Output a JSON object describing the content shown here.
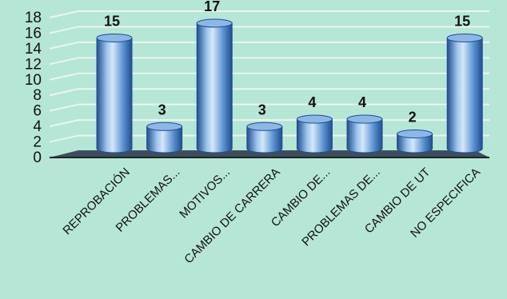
{
  "chart_data": {
    "type": "bar",
    "categories": [
      "REPROBACIÓN",
      "PROBLEMAS...",
      "MOTIVOS...",
      "CAMBIO DE CARRERA",
      "CAMBIO DE...",
      "PROBLEMAS DE...",
      "CAMBIO DE UT",
      "NO ESPECIFICA"
    ],
    "values": [
      15,
      3,
      17,
      3,
      4,
      4,
      2,
      15
    ],
    "data_labels": [
      "15",
      "3",
      "17",
      "3",
      "4",
      "4",
      "2",
      "15"
    ],
    "title": "",
    "xlabel": "",
    "ylabel": "",
    "ylim": [
      0,
      18
    ],
    "yticks": [
      "0",
      "2",
      "4",
      "6",
      "8",
      "10",
      "12",
      "14",
      "16",
      "18"
    ],
    "bar_style": "3d-cylinder",
    "grid": true,
    "legend": "none",
    "colors": {
      "background": "#b6e6d6",
      "bar_light": "#d4e7f8",
      "bar_mid": "#5b92d2",
      "bar_dark": "#1f4e8f",
      "bar_top": "#8db7e6",
      "floor": "#3d4f5e",
      "gridline": "#e8f6f1"
    }
  }
}
